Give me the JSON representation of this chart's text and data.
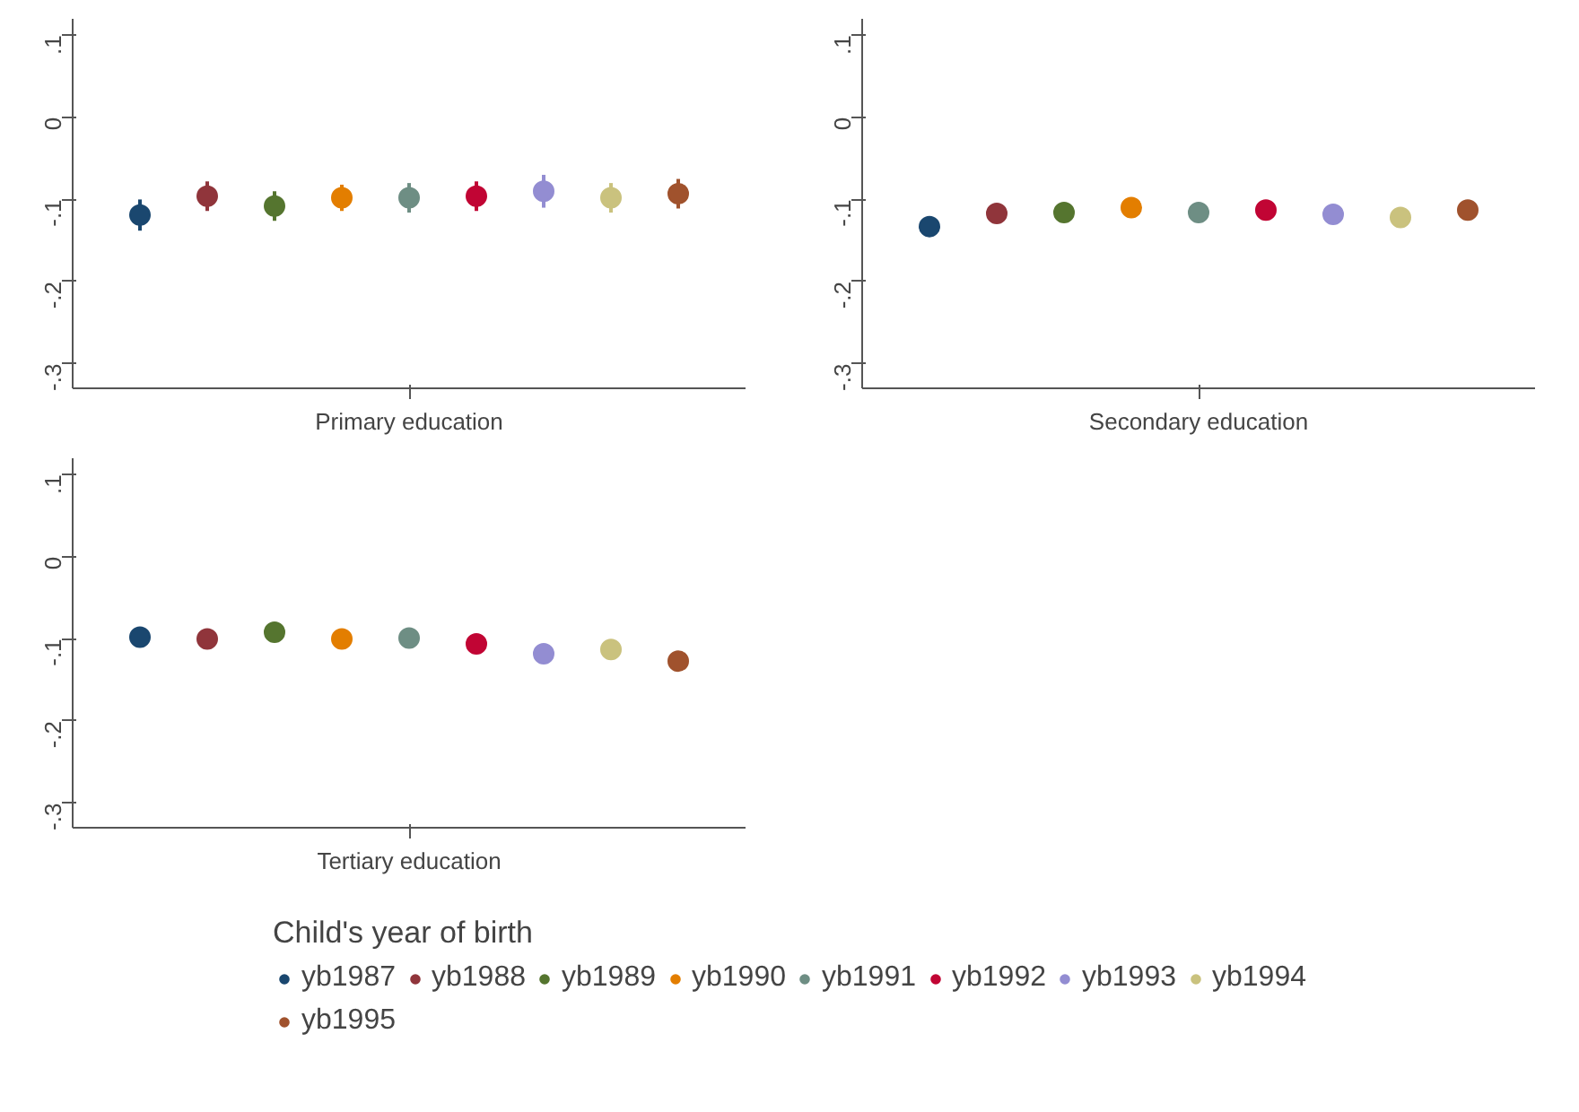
{
  "chart_data": [
    {
      "type": "scatter",
      "xlabel": "Primary education",
      "categories": [
        null,
        null,
        null,
        null,
        null,
        null,
        null,
        null,
        null
      ],
      "ylim": [
        -0.33,
        0.12
      ],
      "yticks": [
        {
          "value": 0.1,
          "label": ".1"
        },
        0,
        {
          "value": -0.1,
          "label": "-.1"
        },
        {
          "value": -0.2,
          "label": "-.2"
        },
        {
          "value": -0.3,
          "label": "-.3"
        }
      ],
      "tick_labels": "y",
      "grid": false,
      "marker": "circle",
      "legend": "bottom",
      "legend_title": "Child's year of birth",
      "series": [
        {
          "name": "yb1987",
          "color": "#1a476f",
          "values": [
            -0.119,
            null,
            null,
            null,
            null,
            null,
            null,
            null,
            null
          ],
          "errors": [
            0.019,
            null,
            null,
            null,
            null,
            null,
            null,
            null,
            null
          ]
        },
        {
          "name": "yb1988",
          "color": "#90353b",
          "values": [
            null,
            -0.096,
            null,
            null,
            null,
            null,
            null,
            null,
            null
          ],
          "errors": [
            null,
            0.018,
            null,
            null,
            null,
            null,
            null,
            null,
            null
          ]
        },
        {
          "name": "yb1989",
          "color": "#55752f",
          "values": [
            null,
            null,
            -0.108,
            null,
            null,
            null,
            null,
            null,
            null
          ],
          "errors": [
            null,
            null,
            0.018,
            null,
            null,
            null,
            null,
            null,
            null
          ]
        },
        {
          "name": "yb1990",
          "color": "#e37e00",
          "values": [
            null,
            null,
            null,
            -0.098,
            null,
            null,
            null,
            null,
            null
          ],
          "errors": [
            null,
            null,
            null,
            0.016,
            null,
            null,
            null,
            null,
            null
          ]
        },
        {
          "name": "yb1991",
          "color": "#6e8e84",
          "values": [
            null,
            null,
            null,
            null,
            -0.098,
            null,
            null,
            null,
            null
          ],
          "errors": [
            null,
            null,
            null,
            null,
            0.018,
            null,
            null,
            null,
            null
          ]
        },
        {
          "name": "yb1992",
          "color": "#c10534",
          "values": [
            null,
            null,
            null,
            null,
            null,
            -0.096,
            null,
            null,
            null
          ],
          "errors": [
            null,
            null,
            null,
            null,
            null,
            0.018,
            null,
            null,
            null
          ]
        },
        {
          "name": "yb1993",
          "color": "#938dd2",
          "values": [
            null,
            null,
            null,
            null,
            null,
            null,
            -0.09,
            null,
            null
          ],
          "errors": [
            null,
            null,
            null,
            null,
            null,
            null,
            0.02,
            null,
            null
          ]
        },
        {
          "name": "yb1994",
          "color": "#cac27e",
          "values": [
            null,
            null,
            null,
            null,
            null,
            null,
            null,
            -0.098,
            null
          ],
          "errors": [
            null,
            null,
            null,
            null,
            null,
            null,
            null,
            0.018,
            null
          ]
        },
        {
          "name": "yb1995",
          "color": "#a0522d",
          "values": [
            null,
            null,
            null,
            null,
            null,
            null,
            null,
            null,
            -0.093
          ],
          "errors": [
            null,
            null,
            null,
            null,
            null,
            null,
            null,
            null,
            0.018
          ]
        }
      ]
    },
    {
      "type": "scatter",
      "xlabel": "Secondary education",
      "categories": [
        null,
        null,
        null,
        null,
        null,
        null,
        null,
        null,
        null
      ],
      "ylim": [
        -0.33,
        0.12
      ],
      "yticks": [
        {
          "value": 0.1,
          "label": ".1"
        },
        0,
        {
          "value": -0.1,
          "label": "-.1"
        },
        {
          "value": -0.2,
          "label": "-.2"
        },
        {
          "value": -0.3,
          "label": "-.3"
        }
      ],
      "tick_labels": "y",
      "grid": false,
      "marker": "circle",
      "series": [
        {
          "color": "#1a476f",
          "values": [
            -0.133,
            null,
            null,
            null,
            null,
            null,
            null,
            null,
            null
          ],
          "errors": [
            0.008,
            null,
            null,
            null,
            null,
            null,
            null,
            null,
            null
          ]
        },
        {
          "color": "#90353b",
          "values": [
            null,
            -0.117,
            null,
            null,
            null,
            null,
            null,
            null,
            null
          ],
          "errors": [
            null,
            0.007,
            null,
            null,
            null,
            null,
            null,
            null,
            null
          ]
        },
        {
          "color": "#55752f",
          "values": [
            null,
            null,
            -0.116,
            null,
            null,
            null,
            null,
            null,
            null
          ],
          "errors": [
            null,
            null,
            0.007,
            null,
            null,
            null,
            null,
            null,
            null
          ]
        },
        {
          "color": "#e37e00",
          "values": [
            null,
            null,
            null,
            -0.11,
            null,
            null,
            null,
            null,
            null
          ],
          "errors": [
            null,
            null,
            null,
            0.007,
            null,
            null,
            null,
            null,
            null
          ]
        },
        {
          "color": "#6e8e84",
          "values": [
            null,
            null,
            null,
            null,
            -0.116,
            null,
            null,
            null,
            null
          ],
          "errors": [
            null,
            null,
            null,
            null,
            0.007,
            null,
            null,
            null,
            null
          ]
        },
        {
          "color": "#c10534",
          "values": [
            null,
            null,
            null,
            null,
            null,
            -0.113,
            null,
            null,
            null
          ],
          "errors": [
            null,
            null,
            null,
            null,
            null,
            0.007,
            null,
            null,
            null
          ]
        },
        {
          "color": "#938dd2",
          "values": [
            null,
            null,
            null,
            null,
            null,
            null,
            -0.118,
            null,
            null
          ],
          "errors": [
            null,
            null,
            null,
            null,
            null,
            null,
            0.007,
            null,
            null
          ]
        },
        {
          "color": "#cac27e",
          "values": [
            null,
            null,
            null,
            null,
            null,
            null,
            null,
            -0.122,
            null
          ],
          "errors": [
            null,
            null,
            null,
            null,
            null,
            null,
            null,
            0.007,
            null
          ]
        },
        {
          "color": "#a0522d",
          "values": [
            null,
            null,
            null,
            null,
            null,
            null,
            null,
            null,
            -0.113
          ],
          "errors": [
            null,
            null,
            null,
            null,
            null,
            null,
            null,
            null,
            0.007
          ]
        }
      ]
    },
    {
      "type": "scatter",
      "xlabel": "Tertiary education",
      "categories": [
        null,
        null,
        null,
        null,
        null,
        null,
        null,
        null,
        null
      ],
      "ylim": [
        -0.33,
        0.12
      ],
      "yticks": [
        {
          "value": 0.1,
          "label": ".1"
        },
        0,
        {
          "value": -0.1,
          "label": "-.1"
        },
        {
          "value": -0.2,
          "label": "-.2"
        },
        {
          "value": -0.3,
          "label": "-.3"
        }
      ],
      "tick_labels": "y",
      "grid": false,
      "marker": "circle",
      "series": [
        {
          "color": "#1a476f",
          "values": [
            -0.098,
            null,
            null,
            null,
            null,
            null,
            null,
            null,
            null
          ],
          "errors": [
            0.01,
            null,
            null,
            null,
            null,
            null,
            null,
            null,
            null
          ]
        },
        {
          "color": "#90353b",
          "values": [
            null,
            -0.1,
            null,
            null,
            null,
            null,
            null,
            null,
            null
          ],
          "errors": [
            null,
            0.01,
            null,
            null,
            null,
            null,
            null,
            null,
            null
          ]
        },
        {
          "color": "#55752f",
          "values": [
            null,
            null,
            -0.092,
            null,
            null,
            null,
            null,
            null,
            null
          ],
          "errors": [
            null,
            null,
            0.011,
            null,
            null,
            null,
            null,
            null,
            null
          ]
        },
        {
          "color": "#e37e00",
          "values": [
            null,
            null,
            null,
            -0.1,
            null,
            null,
            null,
            null,
            null
          ],
          "errors": [
            null,
            null,
            null,
            0.01,
            null,
            null,
            null,
            null,
            null
          ]
        },
        {
          "color": "#6e8e84",
          "values": [
            null,
            null,
            null,
            null,
            -0.099,
            null,
            null,
            null,
            null
          ],
          "errors": [
            null,
            null,
            null,
            null,
            0.01,
            null,
            null,
            null,
            null
          ]
        },
        {
          "color": "#c10534",
          "values": [
            null,
            null,
            null,
            null,
            null,
            -0.106,
            null,
            null,
            null
          ],
          "errors": [
            null,
            null,
            null,
            null,
            null,
            0.01,
            null,
            null,
            null
          ]
        },
        {
          "color": "#938dd2",
          "values": [
            null,
            null,
            null,
            null,
            null,
            null,
            -0.118,
            null,
            null
          ],
          "errors": [
            null,
            null,
            null,
            null,
            null,
            null,
            0.009,
            null,
            null
          ]
        },
        {
          "color": "#cac27e",
          "values": [
            null,
            null,
            null,
            null,
            null,
            null,
            null,
            -0.113,
            null
          ],
          "errors": [
            null,
            null,
            null,
            null,
            null,
            null,
            null,
            0.01,
            null
          ]
        },
        {
          "color": "#a0522d",
          "values": [
            null,
            null,
            null,
            null,
            null,
            null,
            null,
            null,
            -0.127
          ],
          "errors": [
            null,
            null,
            null,
            null,
            null,
            null,
            null,
            null,
            0.011
          ]
        }
      ]
    }
  ]
}
